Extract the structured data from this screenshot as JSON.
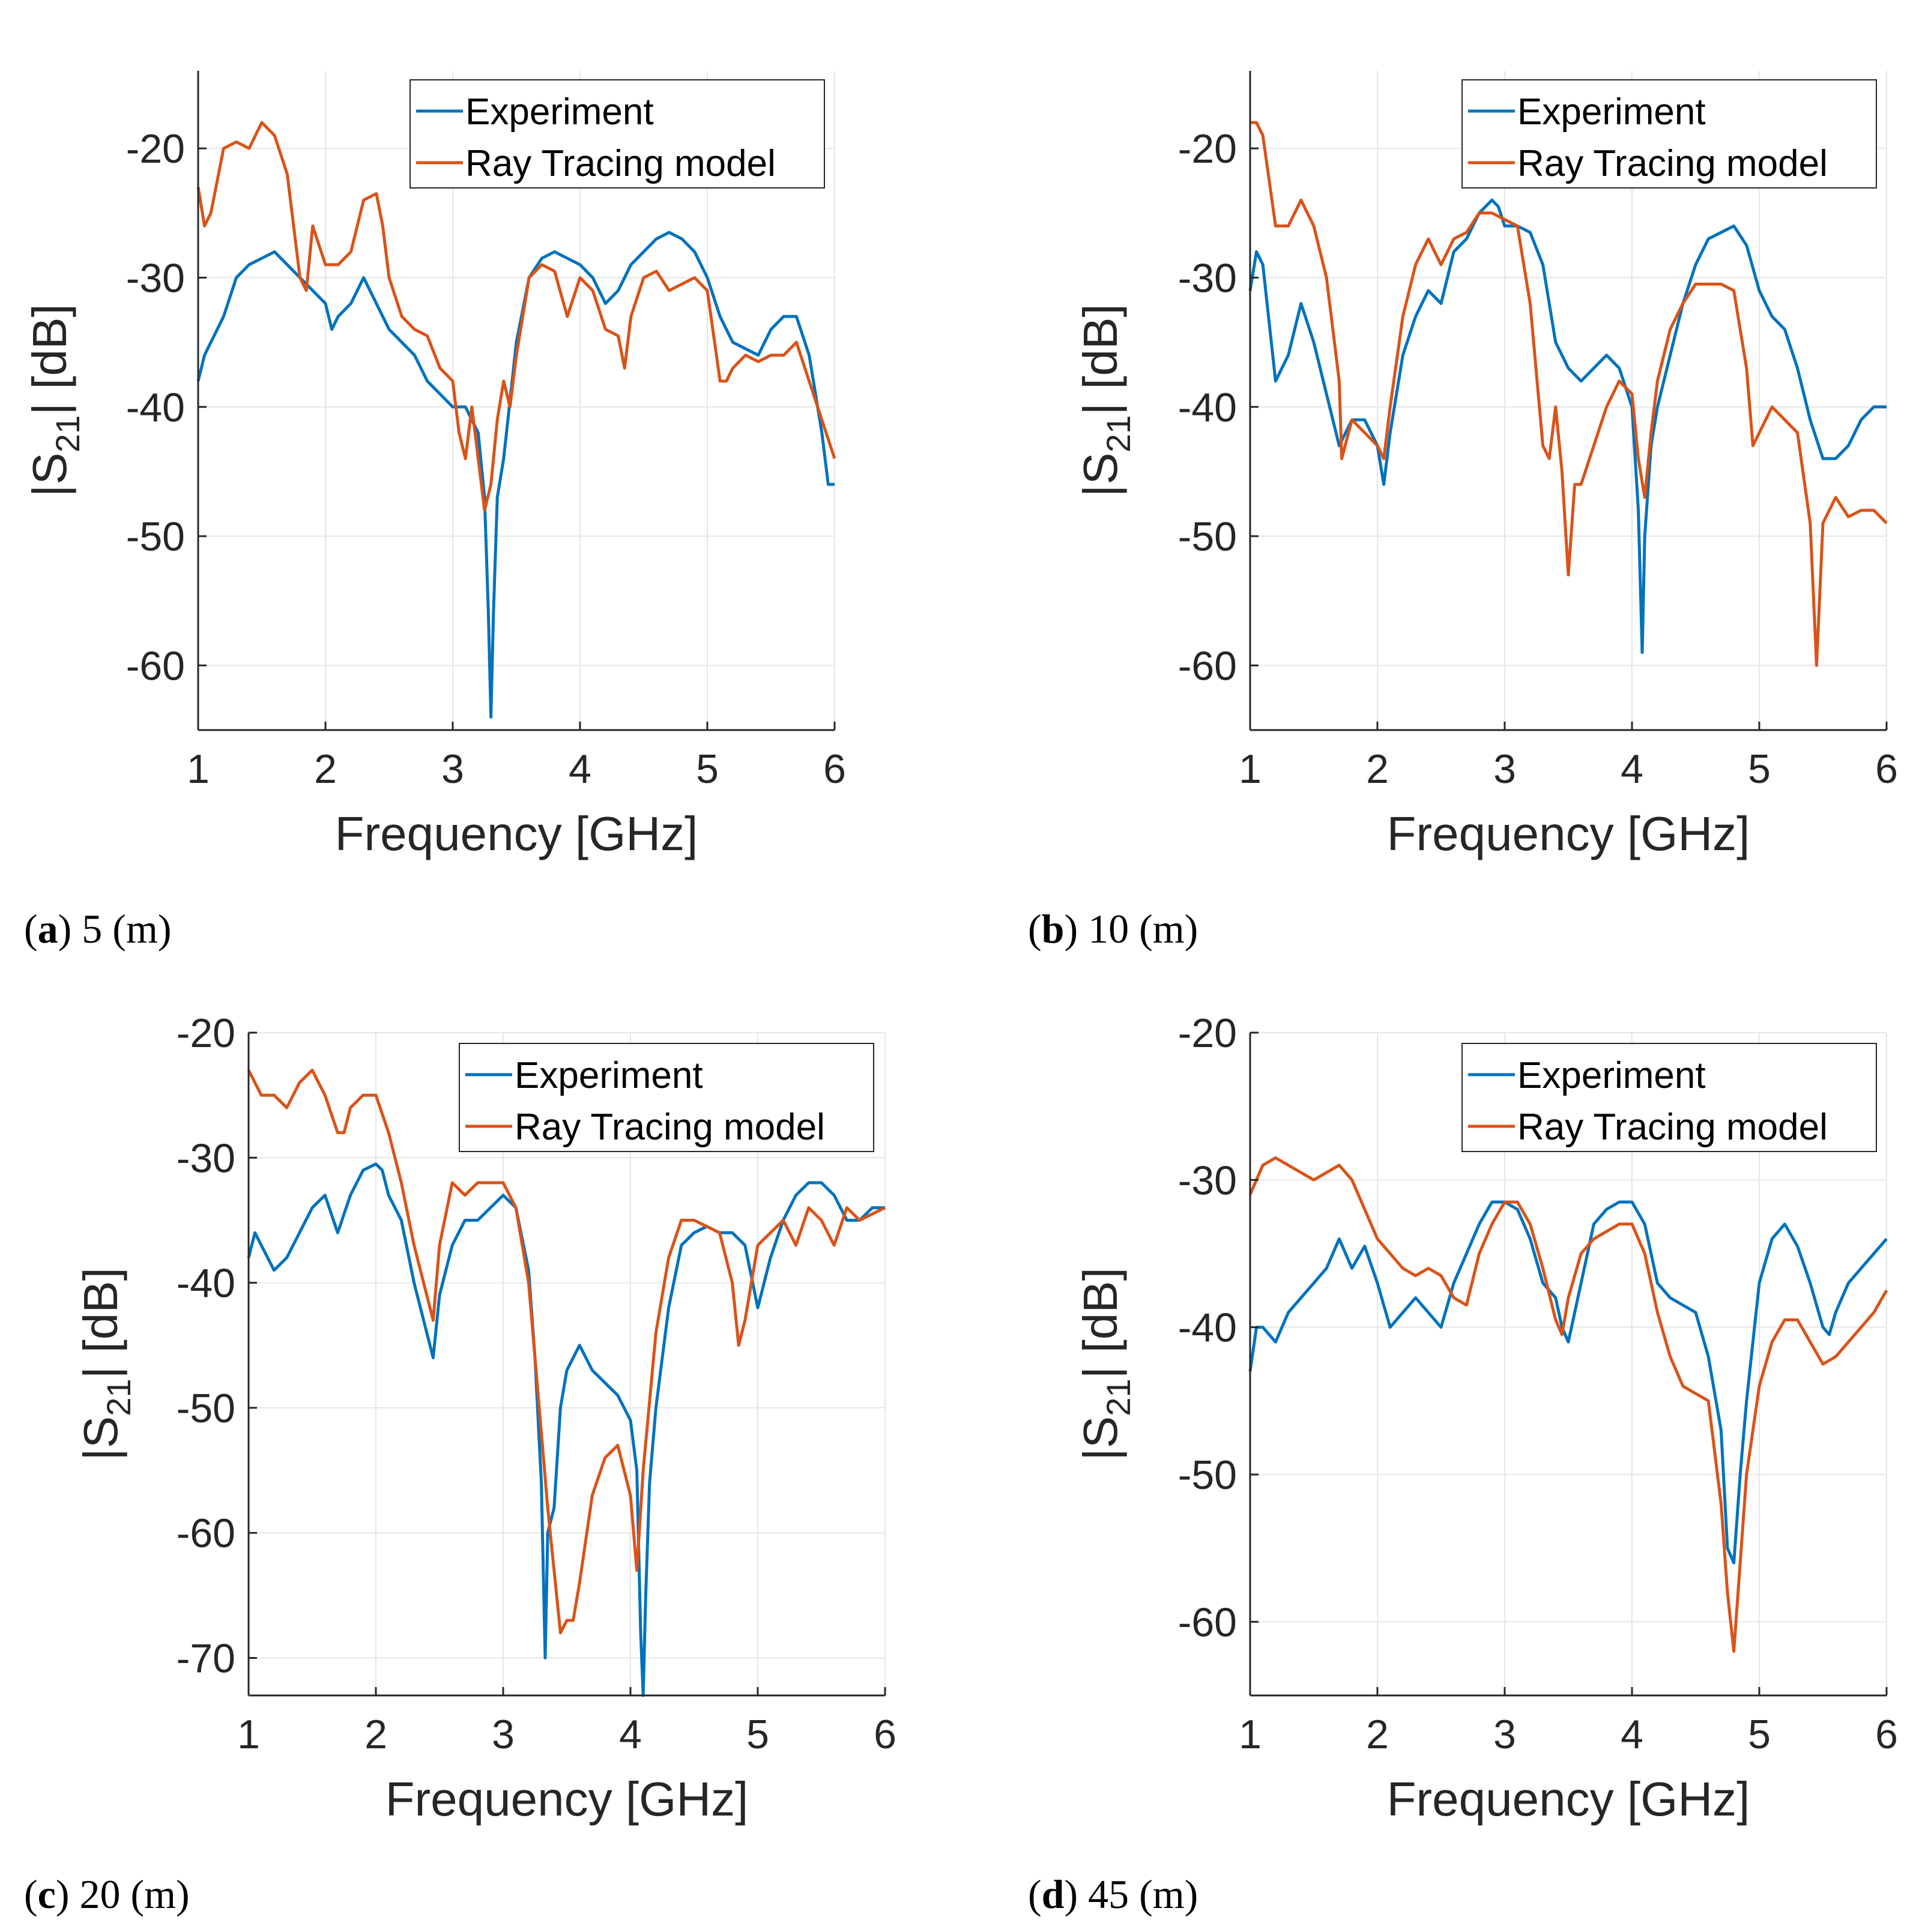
{
  "figure": {
    "series_names": [
      "Experiment",
      "Ray Tracing model"
    ],
    "series_colors": [
      "#0072BD",
      "#D95319"
    ]
  },
  "chart_data": [
    {
      "type": "line",
      "panel": "a",
      "caption_letter": "a",
      "caption_text": " 5 (m)",
      "xlabel": "Frequency [GHz]",
      "ylabel": "|S21| [dB]",
      "ylabel_main": "|S",
      "ylabel_sub": "21",
      "ylabel_tail": "| [dB]",
      "xlim": [
        1,
        6
      ],
      "ylim": [
        -65,
        -14
      ],
      "xticks": [
        1,
        2,
        3,
        4,
        5,
        6
      ],
      "yticks": [
        -60,
        -50,
        -40,
        -30,
        -20
      ],
      "legend": "top-right",
      "grid": true,
      "series": [
        {
          "name": "Experiment",
          "color": "#0072BD",
          "x": [
            1.0,
            1.05,
            1.1,
            1.2,
            1.3,
            1.4,
            1.5,
            1.6,
            1.7,
            1.8,
            1.9,
            2.0,
            2.05,
            2.1,
            2.2,
            2.3,
            2.4,
            2.5,
            2.6,
            2.7,
            2.8,
            2.9,
            3.0,
            3.1,
            3.2,
            3.25,
            3.28,
            3.3,
            3.32,
            3.35,
            3.4,
            3.5,
            3.6,
            3.7,
            3.8,
            3.9,
            4.0,
            4.1,
            4.2,
            4.3,
            4.4,
            4.5,
            4.6,
            4.7,
            4.8,
            4.9,
            5.0,
            5.1,
            5.2,
            5.3,
            5.4,
            5.5,
            5.6,
            5.7,
            5.8,
            5.9,
            5.95,
            6.0
          ],
          "y": [
            -38,
            -36,
            -35,
            -33,
            -30,
            -29,
            -28.5,
            -28,
            -29,
            -30,
            -31,
            -32,
            -34,
            -33,
            -32,
            -30,
            -32,
            -34,
            -35,
            -36,
            -38,
            -39,
            -40,
            -40,
            -42,
            -47,
            -56,
            -64,
            -56,
            -47,
            -44,
            -35,
            -30,
            -28.5,
            -28,
            -28.5,
            -29,
            -30,
            -32,
            -31,
            -29,
            -28,
            -27,
            -26.5,
            -27,
            -28,
            -30,
            -33,
            -35,
            -35.5,
            -36,
            -34,
            -33,
            -33,
            -36,
            -42,
            -46,
            -46
          ]
        },
        {
          "name": "Ray Tracing model",
          "color": "#D95319",
          "x": [
            1.0,
            1.05,
            1.1,
            1.2,
            1.3,
            1.4,
            1.5,
            1.6,
            1.7,
            1.8,
            1.85,
            1.9,
            2.0,
            2.1,
            2.2,
            2.3,
            2.4,
            2.45,
            2.5,
            2.6,
            2.7,
            2.8,
            2.9,
            3.0,
            3.05,
            3.1,
            3.15,
            3.2,
            3.25,
            3.3,
            3.35,
            3.4,
            3.45,
            3.5,
            3.6,
            3.7,
            3.8,
            3.9,
            4.0,
            4.1,
            4.2,
            4.3,
            4.35,
            4.4,
            4.5,
            4.6,
            4.7,
            4.8,
            4.9,
            5.0,
            5.1,
            5.15,
            5.2,
            5.3,
            5.4,
            5.5,
            5.6,
            5.7,
            5.8,
            5.9,
            6.0
          ],
          "y": [
            -23,
            -26,
            -25,
            -20,
            -19.5,
            -20,
            -18,
            -19,
            -22,
            -30,
            -31,
            -26,
            -29,
            -29,
            -28,
            -24,
            -23.5,
            -26,
            -30,
            -33,
            -34,
            -34.5,
            -37,
            -38,
            -42,
            -44,
            -40,
            -44,
            -48,
            -46,
            -41,
            -38,
            -40,
            -36,
            -30,
            -29,
            -29.5,
            -33,
            -30,
            -31,
            -34,
            -34.5,
            -37,
            -33,
            -30,
            -29.5,
            -31,
            -30.5,
            -30,
            -31,
            -38,
            -38,
            -37,
            -36,
            -36.5,
            -36,
            -36,
            -35,
            -38,
            -41,
            -44
          ]
        }
      ]
    },
    {
      "type": "line",
      "panel": "b",
      "caption_letter": "b",
      "caption_text": " 10 (m)",
      "xlabel": "Frequency [GHz]",
      "ylabel": "|S21| [dB]",
      "ylabel_main": "|S",
      "ylabel_sub": "21",
      "ylabel_tail": "| [dB]",
      "xlim": [
        1,
        6
      ],
      "ylim": [
        -65,
        -14
      ],
      "xticks": [
        1,
        2,
        3,
        4,
        5,
        6
      ],
      "yticks": [
        -60,
        -50,
        -40,
        -30,
        -20
      ],
      "legend": "top-right",
      "grid": true,
      "series": [
        {
          "name": "Experiment",
          "color": "#0072BD",
          "x": [
            1.0,
            1.05,
            1.1,
            1.2,
            1.3,
            1.4,
            1.5,
            1.6,
            1.7,
            1.75,
            1.8,
            1.9,
            2.0,
            2.05,
            2.1,
            2.2,
            2.3,
            2.4,
            2.5,
            2.6,
            2.7,
            2.8,
            2.9,
            2.95,
            3.0,
            3.1,
            3.2,
            3.3,
            3.4,
            3.5,
            3.6,
            3.7,
            3.8,
            3.9,
            4.0,
            4.05,
            4.08,
            4.1,
            4.15,
            4.2,
            4.3,
            4.4,
            4.5,
            4.6,
            4.7,
            4.8,
            4.9,
            5.0,
            5.1,
            5.2,
            5.3,
            5.4,
            5.5,
            5.6,
            5.7,
            5.8,
            5.9,
            6.0
          ],
          "y": [
            -31,
            -28,
            -29,
            -38,
            -36,
            -32,
            -35,
            -39,
            -43,
            -42,
            -41,
            -41,
            -43,
            -46,
            -42,
            -36,
            -33,
            -31,
            -32,
            -28,
            -27,
            -25,
            -24,
            -24.5,
            -26,
            -26,
            -26.5,
            -29,
            -35,
            -37,
            -38,
            -37,
            -36,
            -37,
            -40,
            -48,
            -59,
            -50,
            -43,
            -40,
            -36,
            -32,
            -29,
            -27,
            -26.5,
            -26,
            -27.5,
            -31,
            -33,
            -34,
            -37,
            -41,
            -44,
            -44,
            -43,
            -41,
            -40,
            -40
          ]
        },
        {
          "name": "Ray Tracing model",
          "color": "#D95319",
          "x": [
            1.0,
            1.05,
            1.1,
            1.2,
            1.3,
            1.4,
            1.5,
            1.6,
            1.7,
            1.72,
            1.8,
            1.9,
            2.0,
            2.05,
            2.1,
            2.2,
            2.3,
            2.4,
            2.5,
            2.6,
            2.7,
            2.8,
            2.9,
            3.0,
            3.1,
            3.2,
            3.3,
            3.35,
            3.4,
            3.45,
            3.5,
            3.55,
            3.6,
            3.7,
            3.8,
            3.9,
            4.0,
            4.05,
            4.1,
            4.15,
            4.2,
            4.3,
            4.4,
            4.5,
            4.6,
            4.7,
            4.8,
            4.9,
            4.95,
            5.0,
            5.1,
            5.2,
            5.3,
            5.4,
            5.45,
            5.5,
            5.6,
            5.7,
            5.8,
            5.9,
            6.0
          ],
          "y": [
            -18,
            -18,
            -19,
            -26,
            -26,
            -24,
            -26,
            -30,
            -38,
            -44,
            -41,
            -42,
            -43,
            -44,
            -40,
            -33,
            -29,
            -27,
            -29,
            -27,
            -26.5,
            -25,
            -25,
            -25.5,
            -26,
            -32,
            -43,
            -44,
            -40,
            -45,
            -53,
            -46,
            -46,
            -43,
            -40,
            -38,
            -39,
            -44,
            -47,
            -42,
            -38,
            -34,
            -32,
            -30.5,
            -30.5,
            -30.5,
            -31,
            -37,
            -43,
            -42,
            -40,
            -41,
            -42,
            -49,
            -60,
            -49,
            -47,
            -48.5,
            -48,
            -48,
            -49
          ]
        }
      ]
    },
    {
      "type": "line",
      "panel": "c",
      "caption_letter": "c",
      "caption_text": " 20 (m)",
      "xlabel": "Frequency [GHz]",
      "ylabel": "|S21| [dB]",
      "ylabel_main": "|S",
      "ylabel_sub": "21",
      "ylabel_tail": "| [dB]",
      "xlim": [
        1,
        6
      ],
      "ylim": [
        -73,
        -20
      ],
      "xticks": [
        1,
        2,
        3,
        4,
        5,
        6
      ],
      "yticks": [
        -70,
        -60,
        -50,
        -40,
        -30,
        -20
      ],
      "legend": "top-right",
      "grid": true,
      "series": [
        {
          "name": "Experiment",
          "color": "#0072BD",
          "x": [
            1.0,
            1.05,
            1.1,
            1.2,
            1.3,
            1.4,
            1.5,
            1.6,
            1.7,
            1.8,
            1.9,
            2.0,
            2.05,
            2.1,
            2.2,
            2.3,
            2.4,
            2.45,
            2.5,
            2.6,
            2.7,
            2.8,
            2.9,
            3.0,
            3.1,
            3.2,
            3.25,
            3.3,
            3.33,
            3.35,
            3.4,
            3.45,
            3.5,
            3.55,
            3.6,
            3.7,
            3.8,
            3.9,
            4.0,
            4.05,
            4.08,
            4.1,
            4.12,
            4.15,
            4.2,
            4.3,
            4.4,
            4.5,
            4.6,
            4.7,
            4.8,
            4.9,
            5.0,
            5.1,
            5.2,
            5.3,
            5.4,
            5.5,
            5.6,
            5.7,
            5.8,
            5.9,
            6.0
          ],
          "y": [
            -38,
            -36,
            -37,
            -39,
            -38,
            -36,
            -34,
            -33,
            -36,
            -33,
            -31,
            -30.5,
            -31,
            -33,
            -35,
            -40,
            -44,
            -46,
            -41,
            -37,
            -35,
            -35,
            -34,
            -33,
            -34,
            -39,
            -46,
            -56,
            -70,
            -60,
            -58,
            -50,
            -47,
            -46,
            -45,
            -47,
            -48,
            -49,
            -51,
            -55,
            -68,
            -73,
            -65,
            -56,
            -50,
            -42,
            -37,
            -36,
            -35.5,
            -36,
            -36,
            -37,
            -42,
            -38,
            -35,
            -33,
            -32,
            -32,
            -33,
            -35,
            -35,
            -34,
            -34
          ]
        },
        {
          "name": "Ray Tracing model",
          "color": "#D95319",
          "x": [
            1.0,
            1.05,
            1.1,
            1.2,
            1.3,
            1.4,
            1.5,
            1.6,
            1.7,
            1.75,
            1.8,
            1.9,
            2.0,
            2.1,
            2.2,
            2.3,
            2.4,
            2.45,
            2.5,
            2.6,
            2.7,
            2.8,
            2.9,
            3.0,
            3.1,
            3.2,
            3.3,
            3.35,
            3.4,
            3.45,
            3.5,
            3.55,
            3.6,
            3.7,
            3.8,
            3.9,
            4.0,
            4.05,
            4.1,
            4.2,
            4.3,
            4.4,
            4.5,
            4.6,
            4.7,
            4.8,
            4.85,
            4.9,
            5.0,
            5.1,
            5.2,
            5.3,
            5.4,
            5.5,
            5.6,
            5.7,
            5.8,
            5.9,
            6.0
          ],
          "y": [
            -23,
            -24,
            -25,
            -25,
            -26,
            -24,
            -23,
            -25,
            -28,
            -28,
            -26,
            -25,
            -25,
            -28,
            -32,
            -37,
            -41,
            -43,
            -37,
            -32,
            -33,
            -32,
            -32,
            -32,
            -34,
            -40,
            -52,
            -58,
            -63,
            -68,
            -67,
            -67,
            -64,
            -57,
            -54,
            -53,
            -57,
            -63,
            -55,
            -44,
            -38,
            -35,
            -35,
            -35.5,
            -36,
            -40,
            -45,
            -43,
            -37,
            -36,
            -35,
            -37,
            -34,
            -35,
            -37,
            -34,
            -35,
            -34.5,
            -34
          ]
        }
      ]
    },
    {
      "type": "line",
      "panel": "d",
      "caption_letter": "d",
      "caption_text": " 45 (m)",
      "xlabel": "Frequency [GHz]",
      "ylabel": "|S21| [dB]",
      "ylabel_main": "|S",
      "ylabel_sub": "21",
      "ylabel_tail": "| [dB]",
      "xlim": [
        1,
        6
      ],
      "ylim": [
        -65,
        -20
      ],
      "xticks": [
        1,
        2,
        3,
        4,
        5,
        6
      ],
      "yticks": [
        -60,
        -50,
        -40,
        -30,
        -20
      ],
      "legend": "top-right",
      "grid": true,
      "series": [
        {
          "name": "Experiment",
          "color": "#0072BD",
          "x": [
            1.0,
            1.05,
            1.1,
            1.2,
            1.3,
            1.4,
            1.5,
            1.6,
            1.7,
            1.8,
            1.9,
            2.0,
            2.1,
            2.2,
            2.3,
            2.4,
            2.5,
            2.6,
            2.7,
            2.8,
            2.9,
            3.0,
            3.1,
            3.2,
            3.3,
            3.4,
            3.45,
            3.5,
            3.6,
            3.7,
            3.8,
            3.9,
            4.0,
            4.1,
            4.2,
            4.3,
            4.4,
            4.5,
            4.6,
            4.7,
            4.75,
            4.8,
            4.85,
            4.9,
            5.0,
            5.1,
            5.2,
            5.3,
            5.4,
            5.5,
            5.55,
            5.6,
            5.7,
            5.8,
            5.9,
            6.0
          ],
          "y": [
            -43,
            -40,
            -40,
            -41,
            -39,
            -38,
            -37,
            -36,
            -34,
            -36,
            -34.5,
            -37,
            -40,
            -39,
            -38,
            -39,
            -40,
            -37,
            -35,
            -33,
            -31.5,
            -31.5,
            -32,
            -34,
            -37,
            -38,
            -40,
            -41,
            -37,
            -33,
            -32,
            -31.5,
            -31.5,
            -33,
            -37,
            -38,
            -38.5,
            -39,
            -42,
            -47,
            -55,
            -56,
            -50,
            -45,
            -37,
            -34,
            -33,
            -34.5,
            -37,
            -40,
            -40.5,
            -39,
            -37,
            -36,
            -35,
            -34
          ]
        },
        {
          "name": "Ray Tracing model",
          "color": "#D95319",
          "x": [
            1.0,
            1.05,
            1.1,
            1.2,
            1.3,
            1.4,
            1.5,
            1.6,
            1.7,
            1.8,
            1.9,
            2.0,
            2.1,
            2.2,
            2.3,
            2.4,
            2.5,
            2.6,
            2.7,
            2.8,
            2.9,
            3.0,
            3.1,
            3.2,
            3.3,
            3.4,
            3.45,
            3.5,
            3.6,
            3.7,
            3.8,
            3.9,
            4.0,
            4.1,
            4.2,
            4.3,
            4.4,
            4.5,
            4.6,
            4.7,
            4.75,
            4.8,
            4.85,
            4.9,
            5.0,
            5.1,
            5.2,
            5.3,
            5.4,
            5.5,
            5.6,
            5.7,
            5.8,
            5.9,
            6.0
          ],
          "y": [
            -31,
            -30,
            -29,
            -28.5,
            -29,
            -29.5,
            -30,
            -29.5,
            -29,
            -30,
            -32,
            -34,
            -35,
            -36,
            -36.5,
            -36,
            -36.5,
            -38,
            -38.5,
            -35,
            -33,
            -31.5,
            -31.5,
            -33,
            -36,
            -39.5,
            -40.5,
            -38,
            -35,
            -34,
            -33.5,
            -33,
            -33,
            -35,
            -39,
            -42,
            -44,
            -44.5,
            -45,
            -52,
            -58,
            -62,
            -56,
            -50,
            -44,
            -41,
            -39.5,
            -39.5,
            -41,
            -42.5,
            -42,
            -41,
            -40,
            -39,
            -37.5
          ]
        }
      ]
    }
  ]
}
